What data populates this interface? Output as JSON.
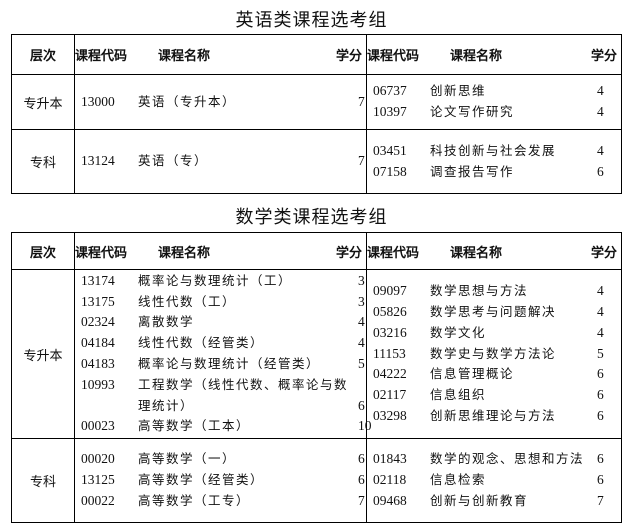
{
  "headers": {
    "level": "层次",
    "code": "课程代码",
    "name": "课程名称",
    "credit": "学分"
  },
  "tables": [
    {
      "title": "英语类课程选考组",
      "rows": [
        {
          "level": "专升本",
          "left": [
            {
              "code": "13000",
              "name": "英语（专升本）",
              "credit": "7"
            }
          ],
          "right": [
            {
              "code": "06737",
              "name": "创新思维",
              "credit": "4"
            },
            {
              "code": "10397",
              "name": "论文写作研究",
              "credit": "4"
            }
          ]
        },
        {
          "level": "专科",
          "left": [
            {
              "code": "13124",
              "name": "英语（专）",
              "credit": "7"
            }
          ],
          "right": [
            {
              "code": "03451",
              "name": "科技创新与社会发展",
              "credit": "4"
            },
            {
              "code": "07158",
              "name": "调查报告写作",
              "credit": "6"
            }
          ]
        }
      ]
    },
    {
      "title": "数学类课程选考组",
      "rows": [
        {
          "level": "专升本",
          "left": [
            {
              "code": "13174",
              "name": "概率论与数理统计（工）",
              "credit": "3"
            },
            {
              "code": "13175",
              "name": "线性代数（工）",
              "credit": "3"
            },
            {
              "code": "02324",
              "name": "离散数学",
              "credit": "4"
            },
            {
              "code": "04184",
              "name": "线性代数（经管类）",
              "credit": "4"
            },
            {
              "code": "04183",
              "name": "概率论与数理统计（经管类）",
              "credit": "5"
            },
            {
              "code": "10993",
              "name": "工程数学（线性代数、概率论与数理统计）",
              "credit": "6"
            },
            {
              "code": "00023",
              "name": "高等数学（工本）",
              "credit": "10"
            }
          ],
          "right": [
            {
              "code": "09097",
              "name": "数学思想与方法",
              "credit": "4"
            },
            {
              "code": "05826",
              "name": "数学思考与问题解决",
              "credit": "4"
            },
            {
              "code": "03216",
              "name": "数学文化",
              "credit": "4"
            },
            {
              "code": "11153",
              "name": "数学史与数学方法论",
              "credit": "5"
            },
            {
              "code": "04222",
              "name": "信息管理概论",
              "credit": "6"
            },
            {
              "code": "02117",
              "name": "信息组织",
              "credit": "6"
            },
            {
              "code": "03298",
              "name": "创新思维理论与方法",
              "credit": "6"
            }
          ]
        },
        {
          "level": "专科",
          "left": [
            {
              "code": "00020",
              "name": "高等数学（一）",
              "credit": "6"
            },
            {
              "code": "13125",
              "name": "高等数学（经管类）",
              "credit": "6"
            },
            {
              "code": "00022",
              "name": "高等数学（工专）",
              "credit": "7"
            }
          ],
          "right": [
            {
              "code": "01843",
              "name": "数学的观念、思想和方法",
              "credit": "6"
            },
            {
              "code": "02118",
              "name": "信息检索",
              "credit": "6"
            },
            {
              "code": "09468",
              "name": "创新与创新教育",
              "credit": "7"
            }
          ]
        }
      ]
    }
  ]
}
